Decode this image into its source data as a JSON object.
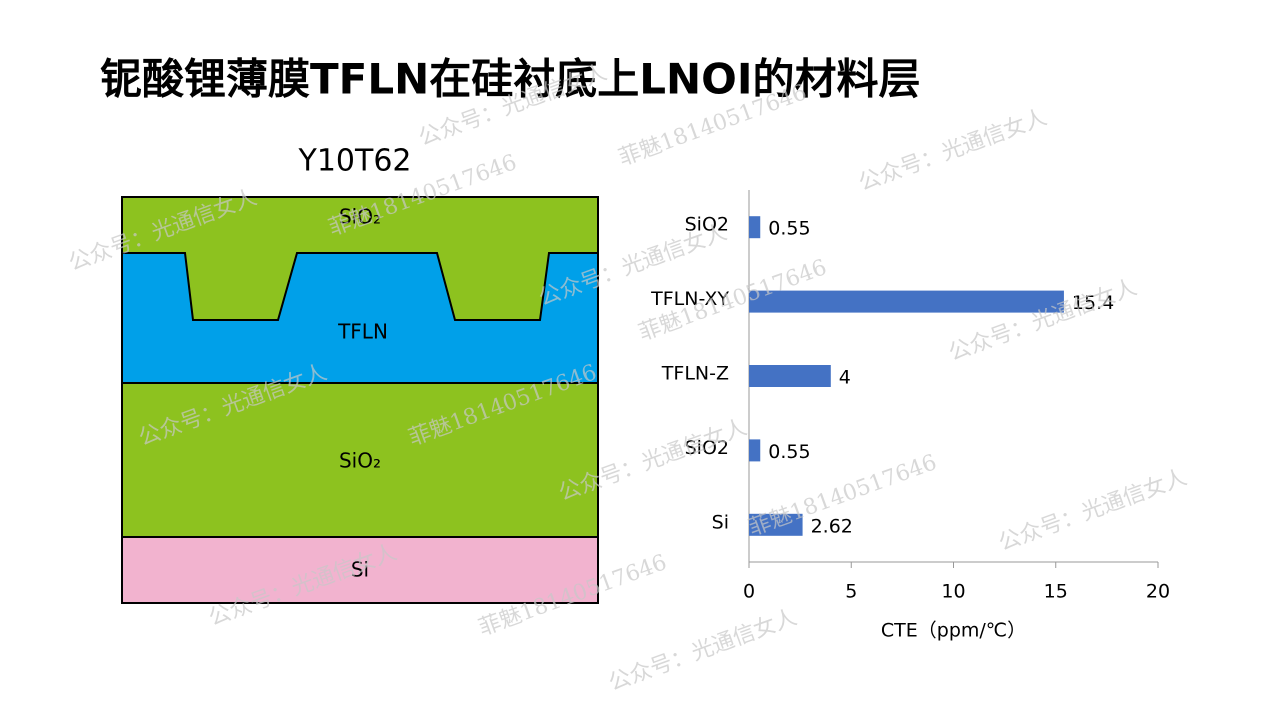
{
  "title": "铌酸锂薄膜TFLN在硅衬底上LNOI的材料层",
  "diagram": {
    "title": "Y10T62",
    "layers": [
      {
        "label": "SiO₂"
      },
      {
        "label": "TFLN"
      },
      {
        "label": "SiO₂"
      },
      {
        "label": "Si"
      }
    ]
  },
  "watermarks": [
    "公众号：光通信女人",
    "菲魅18140517646"
  ],
  "chart_data": {
    "type": "bar",
    "orientation": "horizontal",
    "categories": [
      "SiO2",
      "TFLN-XY",
      "TFLN-Z",
      "SiO2",
      "Si"
    ],
    "values": [
      0.55,
      15.4,
      4,
      0.55,
      2.62
    ],
    "color": "#4472c4",
    "xlim": [
      0,
      20
    ],
    "xticks": [
      0,
      5,
      10,
      15,
      20
    ],
    "xlabel": "CTE（ppm/℃）"
  }
}
